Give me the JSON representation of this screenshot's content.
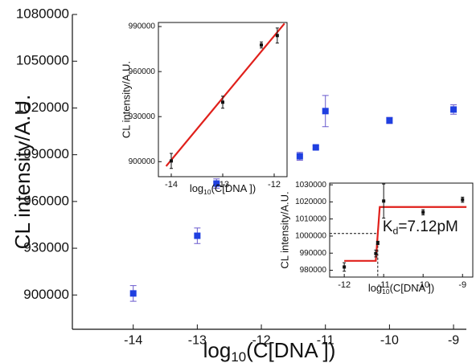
{
  "chart_data": [
    {
      "type": "scatter",
      "y_label": "CL intensity/A.U.",
      "x_label": {
        "base": "log",
        "sub": "10",
        "rest": "(C[DNA ])"
      },
      "x": [
        -14,
        -13,
        -12.7,
        -12,
        -11.4,
        -11.15,
        -11,
        -10,
        -9
      ],
      "values": [
        901000,
        938000,
        971500,
        982000,
        989000,
        994700,
        1018000,
        1012000,
        1019000
      ],
      "errors": [
        5000,
        5000,
        3000,
        5000,
        2500,
        1000,
        10000,
        2000,
        3000
      ],
      "color": "#1f3fe0",
      "xlim": [
        -14.95,
        -8.8
      ],
      "xticks": [
        -14,
        -13,
        -12,
        -11,
        -10,
        -9
      ],
      "ylim": [
        878000,
        1080000
      ],
      "yticks": [
        900000,
        930000,
        960000,
        990000,
        1020000,
        1050000,
        1080000
      ]
    },
    {
      "type": "scatter",
      "y_label": "CL intensity/A.U.",
      "x_label": {
        "base": "log",
        "sub": "10",
        "rest": "(C[DNA ])"
      },
      "x": [
        -14,
        -13,
        -12.25,
        -11.94
      ],
      "values": [
        900500,
        939600,
        977700,
        984000
      ],
      "errors": [
        5000,
        4000,
        2000,
        5000
      ],
      "color": "#111111",
      "fit": {
        "x": [
          -14.1,
          -11.8
        ],
        "values": [
          897000,
          992000
        ],
        "color": "#e0201b"
      },
      "xlim": [
        -14.25,
        -11.75
      ],
      "xticks": [
        -14,
        -13,
        -12
      ],
      "ylim": [
        890000,
        992700
      ],
      "yticks": [
        900000,
        930000,
        960000,
        990000
      ]
    },
    {
      "type": "scatter",
      "y_label": "CL intensity/A.U.",
      "x_label": {
        "base": "log",
        "sub": "10",
        "rest": "(C[DNA ])"
      },
      "x": [
        -12,
        -11.2,
        -11.15,
        -11,
        -10,
        -9
      ],
      "values": [
        981900,
        989800,
        996000,
        1020500,
        1013900,
        1021300
      ],
      "errors": [
        2500,
        2000,
        1000,
        10000,
        1500,
        1500
      ],
      "color": "#111111",
      "fit": {
        "x": [
          -12,
          -11.2,
          -11.1,
          -8.9
        ],
        "values": [
          985500,
          985500,
          1017000,
          1017000
        ],
        "color": "#e0201b"
      },
      "guide": {
        "x": -11.15,
        "y": 1001500
      },
      "annotation": {
        "base": "K",
        "sub": "d",
        "rest": "=7.12pM"
      },
      "xlim": [
        -12.37,
        -8.74
      ],
      "xticks": [
        -12,
        -11,
        -10,
        -9
      ],
      "ylim": [
        976000,
        1031000
      ],
      "yticks": [
        980000,
        990000,
        1000000,
        1010000,
        1020000,
        1030000
      ]
    }
  ]
}
